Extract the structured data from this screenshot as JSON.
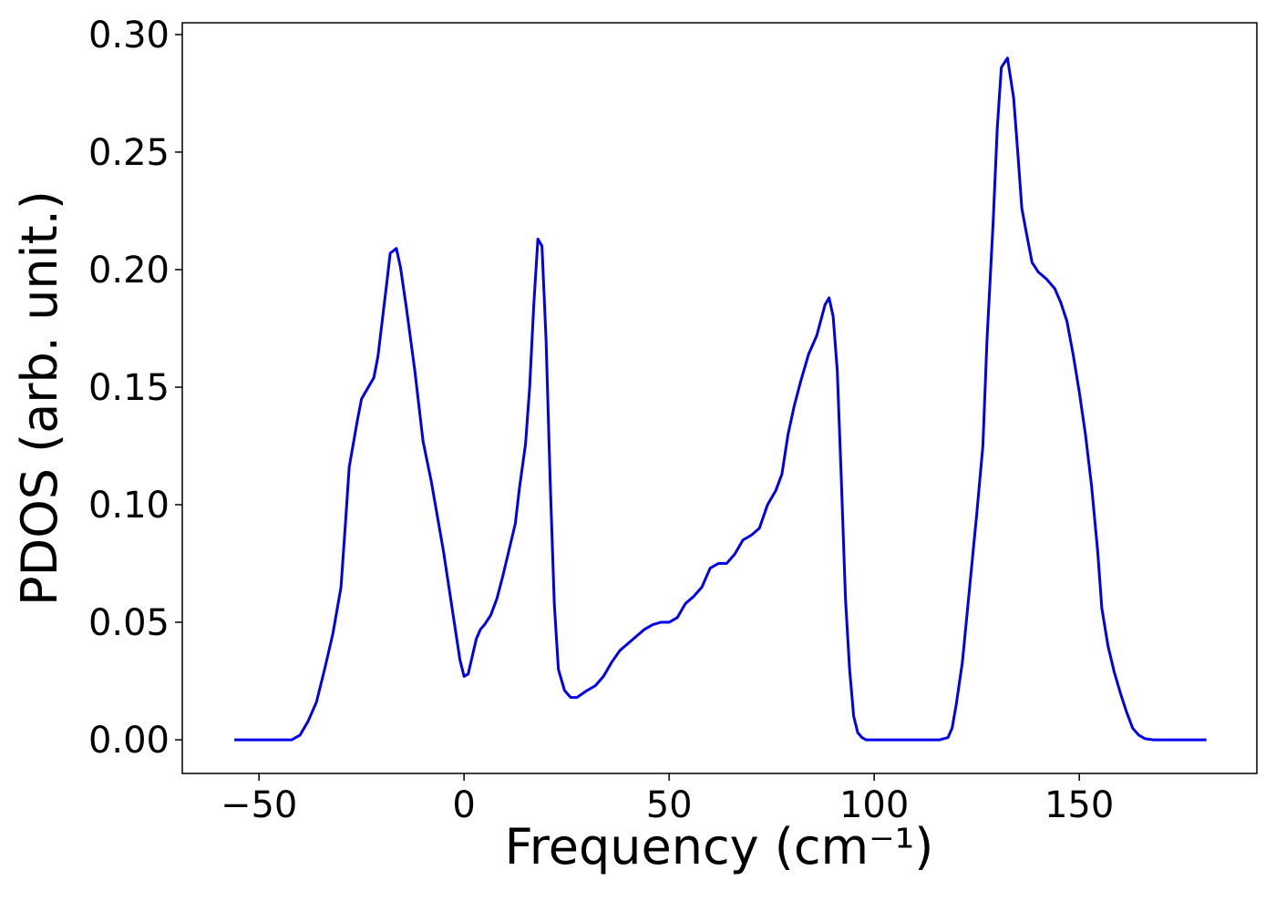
{
  "chart_data": {
    "type": "line",
    "x_label": "Frequency (cm⁻¹)",
    "y_label": "PDOS (arb. unit.)",
    "x": [
      -56,
      -42,
      -40,
      -38,
      -36,
      -34,
      -32,
      -30,
      -29,
      -28,
      -26,
      -25,
      -22,
      -21,
      -19,
      -18,
      -16.5,
      -15.5,
      -14,
      -12,
      -10,
      -8,
      -5,
      -3,
      -1,
      0,
      1,
      3,
      4,
      5,
      6.5,
      8,
      9.5,
      11,
      12.5,
      13.5,
      15,
      16,
      17,
      18,
      19,
      20,
      21,
      22,
      23,
      24.5,
      26,
      27.5,
      30,
      32,
      34,
      36,
      38,
      40,
      42,
      44,
      46,
      48,
      50,
      52,
      54,
      56,
      58,
      60,
      62,
      64,
      66,
      68,
      70,
      72,
      74,
      76,
      77.5,
      79,
      80.5,
      82,
      84,
      86,
      88,
      89,
      90,
      91,
      92,
      93,
      94,
      95,
      96,
      97,
      98,
      116,
      118,
      119,
      120,
      121.5,
      123,
      125,
      126.5,
      127.5,
      129,
      130,
      131,
      132.5,
      134,
      135,
      136,
      137.5,
      138.5,
      140,
      142,
      144,
      145.5,
      147,
      148.5,
      150,
      151.5,
      153,
      154.5,
      155.5,
      157,
      158.5,
      160,
      161.5,
      163,
      164.5,
      166,
      168,
      181
    ],
    "series": [
      {
        "color": "#0000ee",
        "values": [
          0,
          0,
          0.002,
          0.008,
          0.016,
          0.03,
          0.045,
          0.065,
          0.09,
          0.116,
          0.136,
          0.145,
          0.154,
          0.163,
          0.192,
          0.207,
          0.209,
          0.201,
          0.183,
          0.157,
          0.127,
          0.11,
          0.08,
          0.057,
          0.034,
          0.027,
          0.028,
          0.043,
          0.047,
          0.049,
          0.053,
          0.06,
          0.07,
          0.081,
          0.092,
          0.107,
          0.126,
          0.15,
          0.185,
          0.213,
          0.21,
          0.17,
          0.11,
          0.058,
          0.03,
          0.021,
          0.018,
          0.018,
          0.021,
          0.023,
          0.027,
          0.033,
          0.038,
          0.041,
          0.044,
          0.047,
          0.049,
          0.05,
          0.05,
          0.052,
          0.058,
          0.061,
          0.065,
          0.073,
          0.075,
          0.075,
          0.079,
          0.085,
          0.087,
          0.09,
          0.1,
          0.106,
          0.113,
          0.13,
          0.142,
          0.152,
          0.164,
          0.172,
          0.185,
          0.188,
          0.18,
          0.157,
          0.11,
          0.06,
          0.03,
          0.01,
          0.003,
          0.001,
          0,
          0,
          0.001,
          0.005,
          0.015,
          0.033,
          0.06,
          0.096,
          0.125,
          0.17,
          0.22,
          0.26,
          0.286,
          0.29,
          0.273,
          0.25,
          0.226,
          0.212,
          0.203,
          0.199,
          0.196,
          0.192,
          0.186,
          0.178,
          0.164,
          0.148,
          0.13,
          0.108,
          0.08,
          0.056,
          0.04,
          0.029,
          0.02,
          0.012,
          0.005,
          0.002,
          0.0005,
          0,
          0
        ]
      }
    ],
    "xlim": [
      -68.7,
      193.3
    ],
    "ylim": [
      -0.0143,
      0.305
    ],
    "xticks": [
      {
        "value": -50,
        "label": "−50"
      },
      0,
      50,
      100,
      150
    ],
    "yticks": [
      {
        "value": 0,
        "label": "0.00"
      },
      {
        "value": 0.05,
        "label": "0.05"
      },
      {
        "value": 0.1,
        "label": "0.10"
      },
      {
        "value": 0.15,
        "label": "0.15"
      },
      {
        "value": 0.2,
        "label": "0.20"
      },
      {
        "value": 0.25,
        "label": "0.25"
      },
      {
        "value": 0.3,
        "label": "0.30"
      }
    ],
    "grid": false
  }
}
